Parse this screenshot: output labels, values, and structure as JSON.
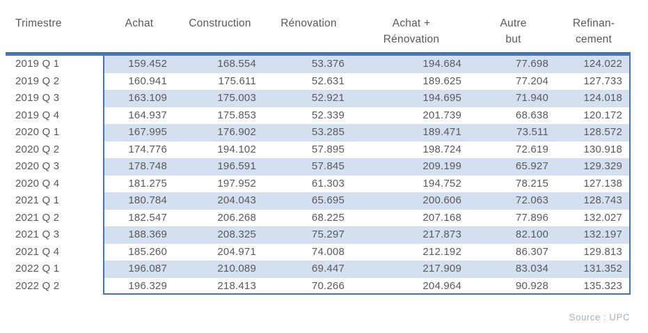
{
  "chart_data": {
    "type": "table",
    "columns": [
      "Trimestre",
      "Achat",
      "Construction",
      "Rénovation",
      "Achat + Rénovation",
      "Autre but",
      "Refinancement"
    ],
    "header_display": [
      "Trimestre",
      "Achat",
      "Construction",
      "Rénovation",
      "Achat +\nRénovation",
      "Autre\nbut",
      "Refinan-\ncement"
    ],
    "rows": [
      {
        "trimestre": "2019 Q 1",
        "values": [
          "159.452",
          "168.554",
          "53.376",
          "194.684",
          "77.698",
          "124.022"
        ]
      },
      {
        "trimestre": "2019 Q 2",
        "values": [
          "160.941",
          "175.611",
          "52.631",
          "189.625",
          "77.204",
          "127.733"
        ]
      },
      {
        "trimestre": "2019 Q 3",
        "values": [
          "163.109",
          "175.003",
          "52.921",
          "194.695",
          "71.940",
          "124.018"
        ]
      },
      {
        "trimestre": "2019 Q 4",
        "values": [
          "164.937",
          "175.853",
          "52.339",
          "201.739",
          "68.638",
          "120.172"
        ]
      },
      {
        "trimestre": "2020 Q 1",
        "values": [
          "167.995",
          "176.902",
          "53.285",
          "189.471",
          "73.511",
          "128.572"
        ]
      },
      {
        "trimestre": "2020 Q 2",
        "values": [
          "174.776",
          "194.102",
          "57.895",
          "198.724",
          "72.619",
          "130.918"
        ]
      },
      {
        "trimestre": "2020 Q 3",
        "values": [
          "178.748",
          "196.591",
          "57.845",
          "209.199",
          "65.927",
          "129.329"
        ]
      },
      {
        "trimestre": "2020 Q 4",
        "values": [
          "181.275",
          "197.952",
          "61.303",
          "194.752",
          "78.215",
          "127.138"
        ]
      },
      {
        "trimestre": "2021 Q 1",
        "values": [
          "180.784",
          "204.043",
          "65.695",
          "200.606",
          "72.063",
          "128.743"
        ]
      },
      {
        "trimestre": "2021 Q 2",
        "values": [
          "182.547",
          "206.268",
          "68.225",
          "207.168",
          "77.896",
          "132.027"
        ]
      },
      {
        "trimestre": "2021 Q 3",
        "values": [
          "188.369",
          "208.325",
          "75.297",
          "217.873",
          "82.100",
          "132.197"
        ]
      },
      {
        "trimestre": "2021 Q 4",
        "values": [
          "185.260",
          "204.971",
          "74.008",
          "212.192",
          "86.307",
          "129.813"
        ]
      },
      {
        "trimestre": "2022 Q 1",
        "values": [
          "196.087",
          "210.089",
          "69.447",
          "217.909",
          "83.034",
          "131.352"
        ]
      },
      {
        "trimestre": "2022 Q 2",
        "values": [
          "196.329",
          "218.413",
          "70.266",
          "204.964",
          "90.928",
          "135.323"
        ]
      }
    ],
    "banding": "alternate data rows tinted, starting with the first row",
    "source": "Source : UPC"
  },
  "colors": {
    "band_blue": "#d4dfef",
    "divider_blue": "#4579bb",
    "box_border_blue": "#4573bd",
    "text_gray": "#595959",
    "source_gray": "#a9b3c0"
  }
}
